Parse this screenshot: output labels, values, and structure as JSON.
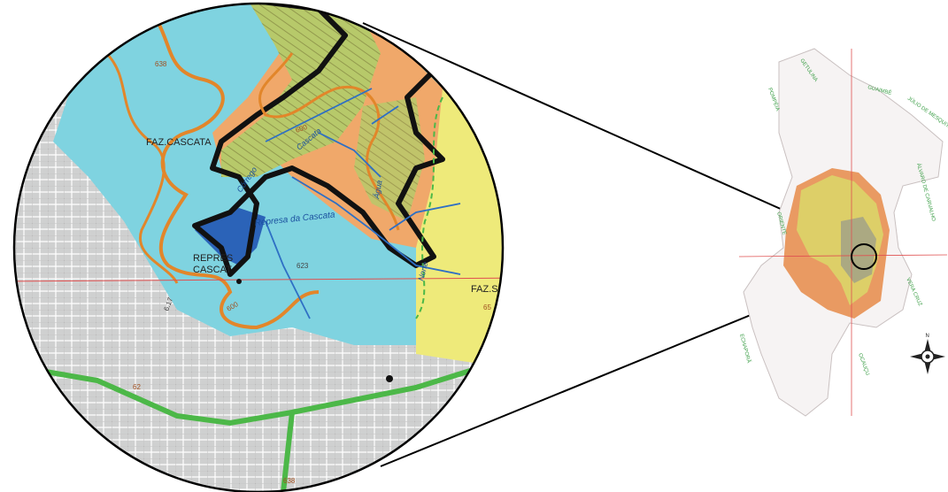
{
  "zoom_labels": {
    "faz_cascata": "FAZ.CASCATA",
    "represa_line1": "REPRES",
    "represa_line2": "CASCAT",
    "represa_water": "Represa da Cascata",
    "corrego": "Córrego",
    "cascata": "Cascata",
    "agua": "Água",
    "norte": "Norte",
    "faz_s": "FAZ.S",
    "contour_600_a": "600",
    "contour_600_b": "600",
    "contour_638": "638",
    "contour_623": "623",
    "contour_617": "6.17",
    "contour_62": "62",
    "contour_65": "65",
    "contour_638b": "638"
  },
  "overview_labels": {
    "getulina": "GETULINA",
    "guaimbe": "GUAIMBÊ",
    "julio": "JÚLIO DE MESQUITA",
    "alvaro": "ÁLVARO DE CARVALHO",
    "vera_cruz": "VERA CRUZ",
    "ocaucu": "OCAUÇU",
    "pompeia": "POMPÉIA",
    "oriente": "ORIENTE",
    "echapora": "ECHAPORÃ"
  },
  "compass": {
    "north": "N"
  },
  "colors": {
    "water": "#7fd3e0",
    "urban": "#cfd0d0",
    "slope_orange": "#f0a86a",
    "slope_green": "#b7c96a",
    "yellow": "#eeea7a",
    "app_boundary": "#111111",
    "contour_orange": "#e2862a",
    "stream_blue": "#2e6fc4",
    "road_green": "#4cb848",
    "grid_red": "#e05050"
  },
  "icons": [
    "compass-rose-icon"
  ]
}
